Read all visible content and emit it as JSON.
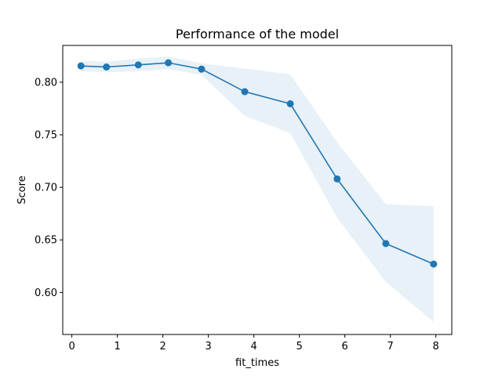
{
  "chart_data": {
    "type": "line",
    "title": "Performance of the model",
    "xlabel": "fit_times",
    "ylabel": "Score",
    "xlim": [
      -0.2,
      8.35
    ],
    "ylim": [
      0.56,
      0.835
    ],
    "x_ticks": [
      0,
      1,
      2,
      3,
      4,
      5,
      6,
      7,
      8
    ],
    "y_ticks": [
      0.6,
      0.65,
      0.7,
      0.75,
      0.8
    ],
    "y_tick_labels": [
      "0.60",
      "0.65",
      "0.70",
      "0.75",
      "0.80"
    ],
    "grid": false,
    "series": [
      {
        "color": "#1f77b4",
        "marker": "circle",
        "x": [
          0.2,
          0.76,
          1.46,
          2.12,
          2.85,
          3.8,
          4.8,
          5.83,
          6.9,
          7.95
        ],
        "values": [
          0.8155,
          0.8145,
          0.8165,
          0.8185,
          0.8125,
          0.791,
          0.7795,
          0.708,
          0.6465,
          0.627
        ],
        "band_upper": [
          0.8205,
          0.8195,
          0.8225,
          0.8245,
          0.818,
          0.813,
          0.8075,
          0.743,
          0.684,
          0.682
        ],
        "band_lower": [
          0.8105,
          0.8095,
          0.8105,
          0.8125,
          0.807,
          0.768,
          0.7515,
          0.671,
          0.61,
          0.572
        ],
        "band_color": "#1f77b4",
        "band_opacity": 0.1
      }
    ]
  }
}
